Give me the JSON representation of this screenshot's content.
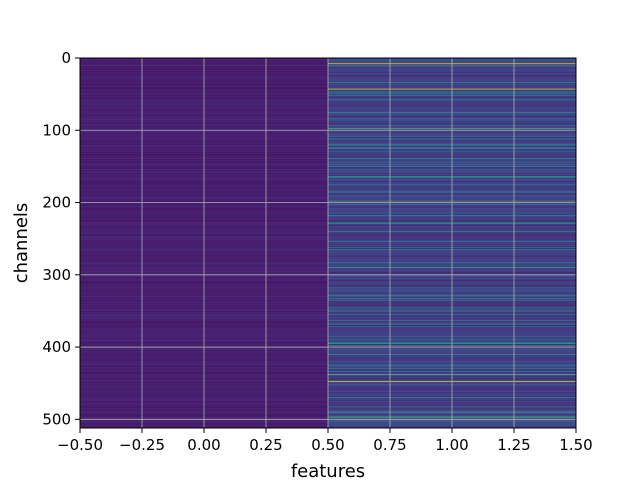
{
  "chart_data": {
    "type": "heatmap",
    "title": "",
    "xlabel": "features",
    "ylabel": "channels",
    "colormap": "viridis",
    "xlim": [
      -0.5,
      1.5
    ],
    "ylim": [
      512,
      0
    ],
    "n_rows": 512,
    "columns": [
      0,
      1
    ],
    "grid": true,
    "x_ticks": [
      -0.5,
      -0.25,
      0.0,
      0.25,
      0.5,
      0.75,
      1.0,
      1.25,
      1.5
    ],
    "x_tick_labels": [
      "−0.50",
      "−0.25",
      "0.00",
      "0.25",
      "0.50",
      "0.75",
      "1.00",
      "1.25",
      "1.50"
    ],
    "y_ticks": [
      0,
      100,
      200,
      300,
      400,
      500
    ],
    "y_tick_labels": [
      "0",
      "100",
      "200",
      "300",
      "400",
      "500"
    ],
    "column_0_baseline": 0.06,
    "column_1_baseline": 0.12,
    "column_1_bright_rows": [
      {
        "row": 8,
        "value": 1.0
      },
      {
        "row": 11,
        "value": 0.55
      },
      {
        "row": 43,
        "value": 0.95
      },
      {
        "row": 58,
        "value": 0.45
      },
      {
        "row": 75,
        "value": 0.4
      },
      {
        "row": 98,
        "value": 0.7
      },
      {
        "row": 112,
        "value": 0.45
      },
      {
        "row": 130,
        "value": 0.35
      },
      {
        "row": 150,
        "value": 0.45
      },
      {
        "row": 175,
        "value": 0.4
      },
      {
        "row": 198,
        "value": 0.65
      },
      {
        "row": 218,
        "value": 0.5
      },
      {
        "row": 240,
        "value": 0.4
      },
      {
        "row": 262,
        "value": 0.45
      },
      {
        "row": 290,
        "value": 0.6
      },
      {
        "row": 300,
        "value": 0.55
      },
      {
        "row": 318,
        "value": 0.45
      },
      {
        "row": 335,
        "value": 0.5
      },
      {
        "row": 355,
        "value": 0.4
      },
      {
        "row": 372,
        "value": 0.45
      },
      {
        "row": 395,
        "value": 0.6
      },
      {
        "row": 410,
        "value": 0.55
      },
      {
        "row": 425,
        "value": 0.5
      },
      {
        "row": 438,
        "value": 0.7
      },
      {
        "row": 448,
        "value": 0.95
      },
      {
        "row": 470,
        "value": 0.5
      },
      {
        "row": 490,
        "value": 0.65
      },
      {
        "row": 497,
        "value": 0.7
      }
    ]
  }
}
